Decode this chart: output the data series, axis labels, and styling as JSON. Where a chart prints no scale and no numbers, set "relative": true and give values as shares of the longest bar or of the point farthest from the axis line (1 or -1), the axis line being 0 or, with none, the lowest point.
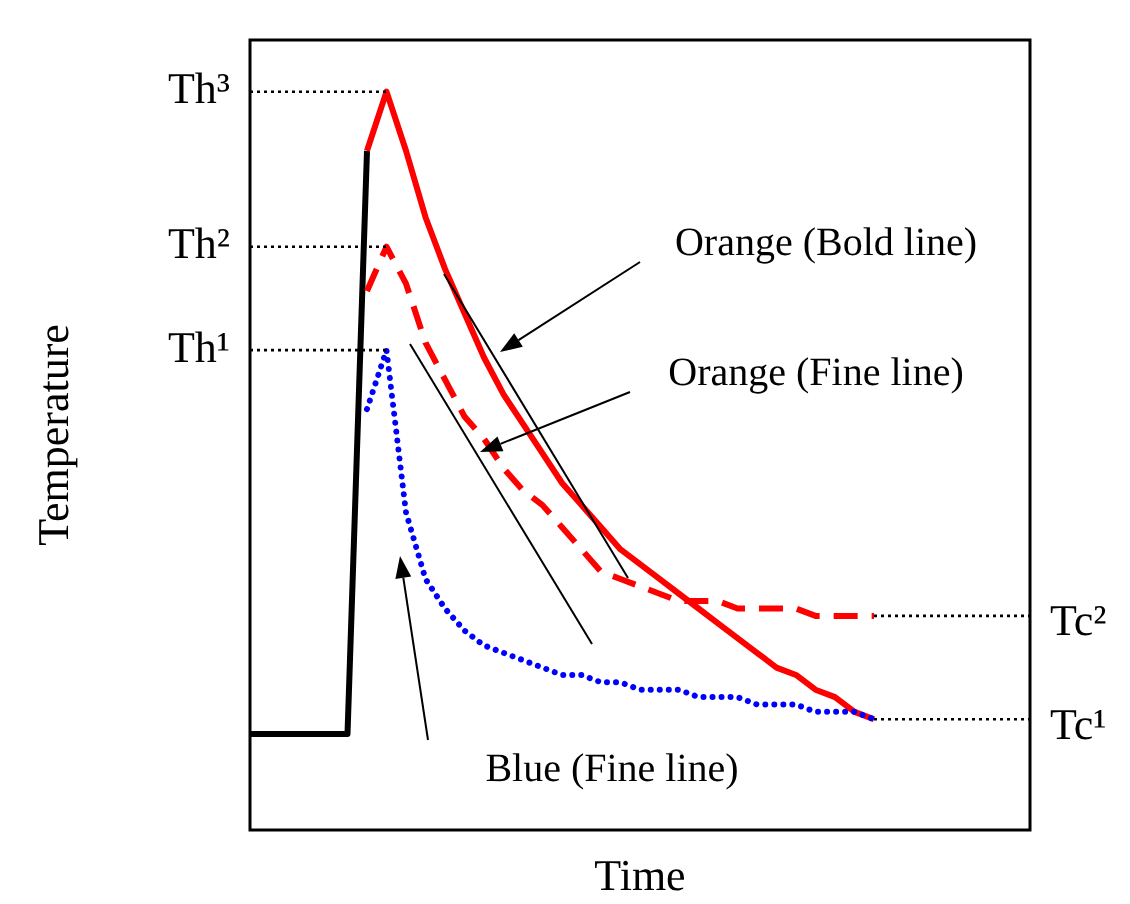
{
  "chart_data": {
    "type": "line",
    "relative": true,
    "xlabel": "Time",
    "ylabel": "Temperature",
    "legend": false,
    "categories": [
      null,
      null,
      null,
      null,
      null,
      null,
      null,
      null,
      null,
      null,
      null,
      null,
      null,
      null,
      null,
      null,
      null,
      null,
      null,
      null,
      null,
      null,
      null,
      null,
      null,
      null,
      null,
      null,
      null,
      null,
      null,
      null,
      null,
      null,
      null,
      null,
      null,
      null,
      null,
      null,
      null
    ],
    "series": [
      {
        "color": "#000000",
        "line_style": "solid",
        "values": [
          0.13,
          0.13,
          0.13,
          0.13,
          0.13,
          0.13,
          0.92,
          null,
          null,
          null,
          null,
          null,
          null,
          null,
          null,
          null,
          null,
          null,
          null,
          null,
          null,
          null,
          null,
          null,
          null,
          null,
          null,
          null,
          null,
          null,
          null,
          null,
          null,
          null,
          null,
          null,
          null,
          null,
          null,
          null,
          null
        ]
      },
      {
        "color": "#ff0000",
        "line_style": "solid",
        "values": [
          null,
          null,
          null,
          null,
          null,
          null,
          0.92,
          1.0,
          0.92,
          0.83,
          0.76,
          0.7,
          0.64,
          0.59,
          0.55,
          0.51,
          0.47,
          0.44,
          0.41,
          0.38,
          0.36,
          0.34,
          0.32,
          0.3,
          0.28,
          0.26,
          0.24,
          0.22,
          0.21,
          0.19,
          0.18,
          0.16,
          0.15,
          null,
          null,
          null,
          null,
          null,
          null,
          null,
          null
        ]
      },
      {
        "color": "#ff0000",
        "line_style": "dashed",
        "values": [
          null,
          null,
          null,
          null,
          null,
          null,
          0.73,
          0.79,
          0.74,
          0.66,
          0.61,
          0.56,
          0.53,
          0.49,
          0.46,
          0.44,
          0.41,
          0.38,
          0.35,
          0.34,
          0.33,
          0.32,
          0.31,
          0.31,
          0.31,
          0.3,
          0.3,
          0.3,
          0.3,
          0.29,
          0.29,
          0.29,
          0.29,
          null,
          null,
          null,
          null,
          null,
          null,
          null,
          null
        ]
      },
      {
        "color": "#0000ff",
        "line_style": "dotted",
        "values": [
          null,
          null,
          null,
          null,
          null,
          null,
          0.57,
          0.65,
          0.43,
          0.34,
          0.3,
          0.27,
          0.25,
          0.24,
          0.23,
          0.22,
          0.21,
          0.21,
          0.2,
          0.2,
          0.19,
          0.19,
          0.19,
          0.18,
          0.18,
          0.18,
          0.17,
          0.17,
          0.17,
          0.16,
          0.16,
          0.16,
          0.15,
          null,
          null,
          null,
          null,
          null,
          null,
          null,
          null
        ]
      }
    ],
    "ref_lines": [
      {
        "axis": "y",
        "value": 1.0,
        "label": "Th³",
        "line_style": "dotted"
      },
      {
        "axis": "y",
        "value": 0.79,
        "label": "Th²",
        "line_style": "dotted"
      },
      {
        "axis": "y",
        "value": 0.65,
        "label": "Th¹",
        "line_style": "dotted"
      },
      {
        "axis": "y",
        "value": 0.29,
        "label": "Tc²",
        "line_style": "dotted"
      },
      {
        "axis": "y",
        "value": 0.15,
        "label": "Tc¹",
        "line_style": "dotted"
      }
    ],
    "annotations": [
      "Orange (Bold line)",
      "Orange (Fine line)",
      "Blue (Fine line)"
    ]
  }
}
